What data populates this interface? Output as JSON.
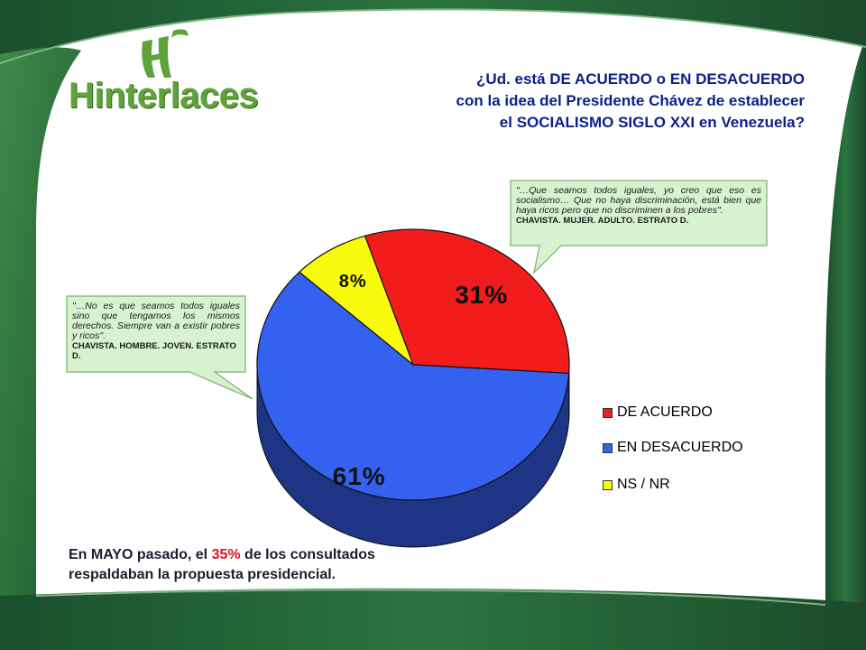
{
  "brand": {
    "name": "Hinterlaces",
    "accent": "#5ea43a"
  },
  "question": {
    "lines": [
      "¿Ud. está DE ACUERDO o EN DESACUERDO",
      "con la idea del Presidente Chávez de establecer",
      "el SOCIALISMO SIGLO XXI en Venezuela?"
    ]
  },
  "chart_data": {
    "type": "pie",
    "style": "3d",
    "categories": [
      "DE ACUERDO",
      "EN DESACUERDO",
      "NS / NR"
    ],
    "values": [
      31,
      61,
      8
    ],
    "value_labels": [
      "31%",
      "61%",
      "8%"
    ],
    "colors": [
      "#f21c1c",
      "#3561f0",
      "#fafa0c"
    ],
    "legend_position": "right"
  },
  "quotes": [
    {
      "text": "\"…Que seamos todos iguales, yo creo que eso es socialismo… Que no haya discriminación, está bien que haya ricos pero que no discriminen a los pobres\".",
      "source": "CHAVISTA. MUJER. ADULTO. ESTRATO D."
    },
    {
      "text": "\"…No es que seamos todos iguales sino que tengamos los mismos derechos. Siempre van a existir pobres y ricos\".",
      "source": "CHAVISTA. HOMBRE. JOVEN. ESTRATO D."
    }
  ],
  "footer": {
    "before": "En MAYO pasado, el ",
    "highlight": "35%",
    "after": " de los consultados",
    "line2": "respaldaban la propuesta presidencial."
  },
  "colors": {
    "frame_green": "#1f5a32",
    "callout_fill": "#d6f2cf",
    "callout_border": "#7dae74",
    "question_text": "#0a1f8c"
  }
}
